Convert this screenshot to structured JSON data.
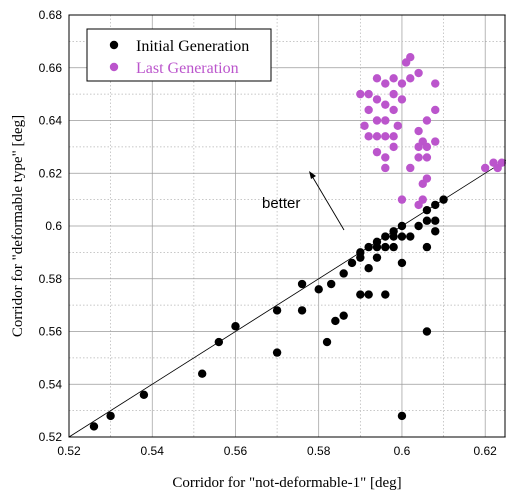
{
  "chart_data": {
    "type": "scatter",
    "xlabel": "Corridor for \"not-deformable-1\" [deg]",
    "ylabel": "Corridor for \"deformable type\" [deg]",
    "xlim": [
      0.52,
      0.625
    ],
    "ylim": [
      0.52,
      0.68
    ],
    "x_ticks": [
      "0.52",
      "0.54",
      "0.56",
      "0.58",
      "0.6",
      "0.62"
    ],
    "y_ticks": [
      "0.52",
      "0.54",
      "0.56",
      "0.58",
      "0.6",
      "0.62",
      "0.64",
      "0.66",
      "0.68"
    ],
    "grid": true,
    "diagonal_line": true,
    "legend_position": "top-left",
    "annotation": "better",
    "series": [
      {
        "name": "Initial Generation",
        "color": "#000000",
        "points": [
          [
            0.526,
            0.524
          ],
          [
            0.53,
            0.528
          ],
          [
            0.538,
            0.536
          ],
          [
            0.552,
            0.544
          ],
          [
            0.556,
            0.556
          ],
          [
            0.56,
            0.562
          ],
          [
            0.57,
            0.552
          ],
          [
            0.57,
            0.568
          ],
          [
            0.576,
            0.568
          ],
          [
            0.576,
            0.578
          ],
          [
            0.58,
            0.576
          ],
          [
            0.582,
            0.556
          ],
          [
            0.583,
            0.578
          ],
          [
            0.584,
            0.564
          ],
          [
            0.586,
            0.566
          ],
          [
            0.586,
            0.582
          ],
          [
            0.588,
            0.586
          ],
          [
            0.59,
            0.574
          ],
          [
            0.59,
            0.588
          ],
          [
            0.59,
            0.59
          ],
          [
            0.592,
            0.574
          ],
          [
            0.592,
            0.584
          ],
          [
            0.592,
            0.592
          ],
          [
            0.594,
            0.588
          ],
          [
            0.594,
            0.592
          ],
          [
            0.594,
            0.594
          ],
          [
            0.596,
            0.574
          ],
          [
            0.596,
            0.592
          ],
          [
            0.596,
            0.596
          ],
          [
            0.598,
            0.592
          ],
          [
            0.598,
            0.596
          ],
          [
            0.598,
            0.598
          ],
          [
            0.6,
            0.528
          ],
          [
            0.6,
            0.586
          ],
          [
            0.6,
            0.596
          ],
          [
            0.6,
            0.6
          ],
          [
            0.602,
            0.596
          ],
          [
            0.604,
            0.6
          ],
          [
            0.606,
            0.56
          ],
          [
            0.606,
            0.592
          ],
          [
            0.606,
            0.602
          ],
          [
            0.606,
            0.606
          ],
          [
            0.608,
            0.598
          ],
          [
            0.608,
            0.602
          ],
          [
            0.608,
            0.608
          ],
          [
            0.61,
            0.61
          ]
        ]
      },
      {
        "name": "Last Generation",
        "color": "#bb55cc",
        "points": [
          [
            0.59,
            0.65
          ],
          [
            0.591,
            0.638
          ],
          [
            0.592,
            0.644
          ],
          [
            0.592,
            0.634
          ],
          [
            0.592,
            0.65
          ],
          [
            0.594,
            0.656
          ],
          [
            0.594,
            0.648
          ],
          [
            0.594,
            0.64
          ],
          [
            0.594,
            0.634
          ],
          [
            0.594,
            0.628
          ],
          [
            0.596,
            0.646
          ],
          [
            0.596,
            0.654
          ],
          [
            0.596,
            0.64
          ],
          [
            0.596,
            0.634
          ],
          [
            0.596,
            0.626
          ],
          [
            0.596,
            0.622
          ],
          [
            0.598,
            0.65
          ],
          [
            0.598,
            0.656
          ],
          [
            0.598,
            0.644
          ],
          [
            0.598,
            0.634
          ],
          [
            0.598,
            0.63
          ],
          [
            0.599,
            0.638
          ],
          [
            0.6,
            0.654
          ],
          [
            0.6,
            0.648
          ],
          [
            0.6,
            0.61
          ],
          [
            0.601,
            0.662
          ],
          [
            0.602,
            0.664
          ],
          [
            0.602,
            0.656
          ],
          [
            0.602,
            0.622
          ],
          [
            0.604,
            0.658
          ],
          [
            0.604,
            0.636
          ],
          [
            0.604,
            0.63
          ],
          [
            0.604,
            0.626
          ],
          [
            0.604,
            0.608
          ],
          [
            0.605,
            0.632
          ],
          [
            0.605,
            0.616
          ],
          [
            0.605,
            0.61
          ],
          [
            0.606,
            0.63
          ],
          [
            0.606,
            0.64
          ],
          [
            0.606,
            0.626
          ],
          [
            0.606,
            0.618
          ],
          [
            0.608,
            0.644
          ],
          [
            0.608,
            0.632
          ],
          [
            0.608,
            0.654
          ],
          [
            0.62,
            0.622
          ],
          [
            0.622,
            0.624
          ],
          [
            0.623,
            0.622
          ],
          [
            0.624,
            0.624
          ]
        ]
      }
    ]
  }
}
